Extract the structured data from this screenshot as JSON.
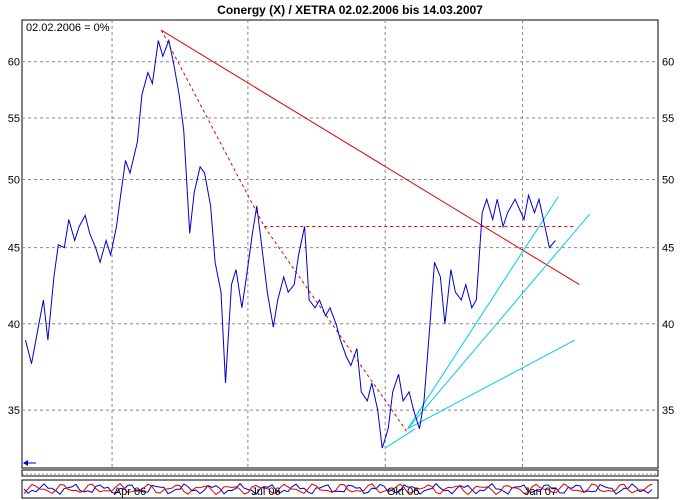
{
  "chart_data": {
    "type": "line",
    "title": "Conergy (X) / XETRA 02.02.2006 bis 14.03.2007",
    "note": "02.02.2006 = 0%",
    "y_scale": "log",
    "ylim": [
      32,
      64
    ],
    "y_ticks": [
      35,
      40,
      45,
      50,
      55,
      60
    ],
    "y_tick_labels": [
      "35",
      "40",
      "45",
      "50",
      "55",
      "60"
    ],
    "x_ticks": [
      {
        "label": "Apr 06",
        "date": "2006-04-01"
      },
      {
        "label": "Jul 06",
        "date": "2006-07-01"
      },
      {
        "label": "Okt 06",
        "date": "2006-10-01"
      },
      {
        "label": "Jan 07",
        "date": "2007-01-01"
      }
    ],
    "grid": true,
    "colors": {
      "price": "#0000cc",
      "resistance": "#e00000",
      "fan": "#00ccee",
      "grid": "#888888",
      "frame": "#000000"
    },
    "series": [
      {
        "points": [
          [
            "2006-02-02",
            39
          ],
          [
            "2006-02-06",
            37.6
          ],
          [
            "2006-02-10",
            39.5
          ],
          [
            "2006-02-14",
            41.5
          ],
          [
            "2006-02-17",
            39.0
          ],
          [
            "2006-02-21",
            43.0
          ],
          [
            "2006-02-24",
            45.2
          ],
          [
            "2006-02-28",
            45.0
          ],
          [
            "2006-03-03",
            47.0
          ],
          [
            "2006-03-07",
            45.5
          ],
          [
            "2006-03-10",
            46.5
          ],
          [
            "2006-03-14",
            47.3
          ],
          [
            "2006-03-17",
            46.0
          ],
          [
            "2006-03-21",
            45.0
          ],
          [
            "2006-03-24",
            44.0
          ],
          [
            "2006-03-28",
            45.5
          ],
          [
            "2006-03-31",
            44.5
          ],
          [
            "2006-04-04",
            46.5
          ],
          [
            "2006-04-07",
            49.0
          ],
          [
            "2006-04-10",
            51.5
          ],
          [
            "2006-04-13",
            50.5
          ],
          [
            "2006-04-18",
            53.0
          ],
          [
            "2006-04-21",
            57.0
          ],
          [
            "2006-04-25",
            59.0
          ],
          [
            "2006-04-28",
            58.0
          ],
          [
            "2006-05-02",
            62.0
          ],
          [
            "2006-05-05",
            60.5
          ],
          [
            "2006-05-09",
            62.0
          ],
          [
            "2006-05-12",
            60.0
          ],
          [
            "2006-05-16",
            57.0
          ],
          [
            "2006-05-19",
            54.0
          ],
          [
            "2006-05-23",
            46.0
          ],
          [
            "2006-05-26",
            49.0
          ],
          [
            "2006-05-30",
            51.0
          ],
          [
            "2006-06-02",
            50.5
          ],
          [
            "2006-06-06",
            48.0
          ],
          [
            "2006-06-09",
            44.0
          ],
          [
            "2006-06-13",
            42.0
          ],
          [
            "2006-06-16",
            36.5
          ],
          [
            "2006-06-20",
            42.5
          ],
          [
            "2006-06-23",
            43.5
          ],
          [
            "2006-06-27",
            41.0
          ],
          [
            "2006-06-30",
            43.0
          ],
          [
            "2006-07-04",
            46.0
          ],
          [
            "2006-07-07",
            48.0
          ],
          [
            "2006-07-11",
            44.5
          ],
          [
            "2006-07-14",
            42.0
          ],
          [
            "2006-07-18",
            39.8
          ],
          [
            "2006-07-21",
            41.5
          ],
          [
            "2006-07-25",
            43.0
          ],
          [
            "2006-07-28",
            42.0
          ],
          [
            "2006-08-01",
            42.5
          ],
          [
            "2006-08-04",
            44.5
          ],
          [
            "2006-08-08",
            46.5
          ],
          [
            "2006-08-11",
            41.5
          ],
          [
            "2006-08-15",
            41.0
          ],
          [
            "2006-08-18",
            41.5
          ],
          [
            "2006-08-22",
            40.5
          ],
          [
            "2006-08-25",
            41.0
          ],
          [
            "2006-08-29",
            40.0
          ],
          [
            "2006-09-01",
            39.0
          ],
          [
            "2006-09-05",
            38.0
          ],
          [
            "2006-09-08",
            37.5
          ],
          [
            "2006-09-12",
            38.5
          ],
          [
            "2006-09-15",
            36.0
          ],
          [
            "2006-09-19",
            35.5
          ],
          [
            "2006-09-22",
            36.5
          ],
          [
            "2006-09-26",
            35.0
          ],
          [
            "2006-09-29",
            33.0
          ],
          [
            "2006-10-03",
            34.0
          ],
          [
            "2006-10-06",
            36.0
          ],
          [
            "2006-10-10",
            37.0
          ],
          [
            "2006-10-13",
            35.5
          ],
          [
            "2006-10-17",
            36.0
          ],
          [
            "2006-10-20",
            35.0
          ],
          [
            "2006-10-24",
            34.0
          ],
          [
            "2006-10-27",
            35.5
          ],
          [
            "2006-10-31",
            40.0
          ],
          [
            "2006-11-03",
            44.0
          ],
          [
            "2006-11-07",
            43.0
          ],
          [
            "2006-11-10",
            40.0
          ],
          [
            "2006-11-14",
            43.5
          ],
          [
            "2006-11-17",
            42.0
          ],
          [
            "2006-11-21",
            41.5
          ],
          [
            "2006-11-24",
            42.5
          ],
          [
            "2006-11-28",
            41.0
          ],
          [
            "2006-12-01",
            41.5
          ],
          [
            "2006-12-05",
            47.5
          ],
          [
            "2006-12-08",
            48.5
          ],
          [
            "2006-12-12",
            47.0
          ],
          [
            "2006-12-15",
            48.5
          ],
          [
            "2006-12-19",
            46.5
          ],
          [
            "2006-12-22",
            47.5
          ],
          [
            "2006-12-27",
            48.5
          ],
          [
            "2007-01-02",
            47.0
          ],
          [
            "2007-01-05",
            48.8
          ],
          [
            "2007-01-09",
            47.5
          ],
          [
            "2007-01-12",
            48.5
          ],
          [
            "2007-01-16",
            46.5
          ],
          [
            "2007-01-19",
            45.0
          ],
          [
            "2007-01-23",
            45.5
          ]
        ]
      }
    ],
    "annotations": {
      "resistance_line": [
        [
          "2006-05-04",
          63.0
        ],
        [
          "2007-02-08",
          42.5
        ]
      ],
      "down_trend_dashed": [
        [
          "2006-05-04",
          63.0
        ],
        [
          "2006-07-12",
          46.5
        ],
        [
          "2006-10-16",
          33.8
        ]
      ],
      "horizontal_dashed": [
        [
          "2006-07-12",
          46.5
        ],
        [
          "2007-02-05",
          46.5
        ]
      ],
      "fan_lines": [
        [
          [
            "2006-10-16",
            34.0
          ],
          [
            "2007-01-25",
            48.7
          ]
        ],
        [
          [
            "2006-10-16",
            34.0
          ],
          [
            "2007-02-15",
            47.4
          ]
        ],
        [
          [
            "2006-10-16",
            34.0
          ],
          [
            "2007-02-05",
            39.0
          ]
        ]
      ],
      "fan_origin_low": [
        [
          "2006-10-01",
          33.0
        ],
        [
          "2006-10-21",
          34.0
        ]
      ]
    }
  }
}
